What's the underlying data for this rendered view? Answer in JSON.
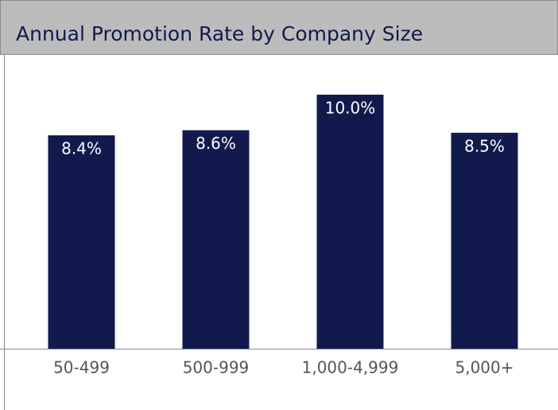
{
  "chart_data": {
    "type": "bar",
    "title": "Annual Promotion Rate by Company Size",
    "categories": [
      "50-499",
      "500-999",
      "1,000-4,999",
      "5,000+"
    ],
    "values": [
      8.4,
      8.6,
      10.0,
      8.5
    ],
    "value_labels": [
      "8.4%",
      "8.6%",
      "10.0%",
      "8.5%"
    ],
    "color": "#121a4d",
    "ylim": [
      0,
      11
    ]
  }
}
